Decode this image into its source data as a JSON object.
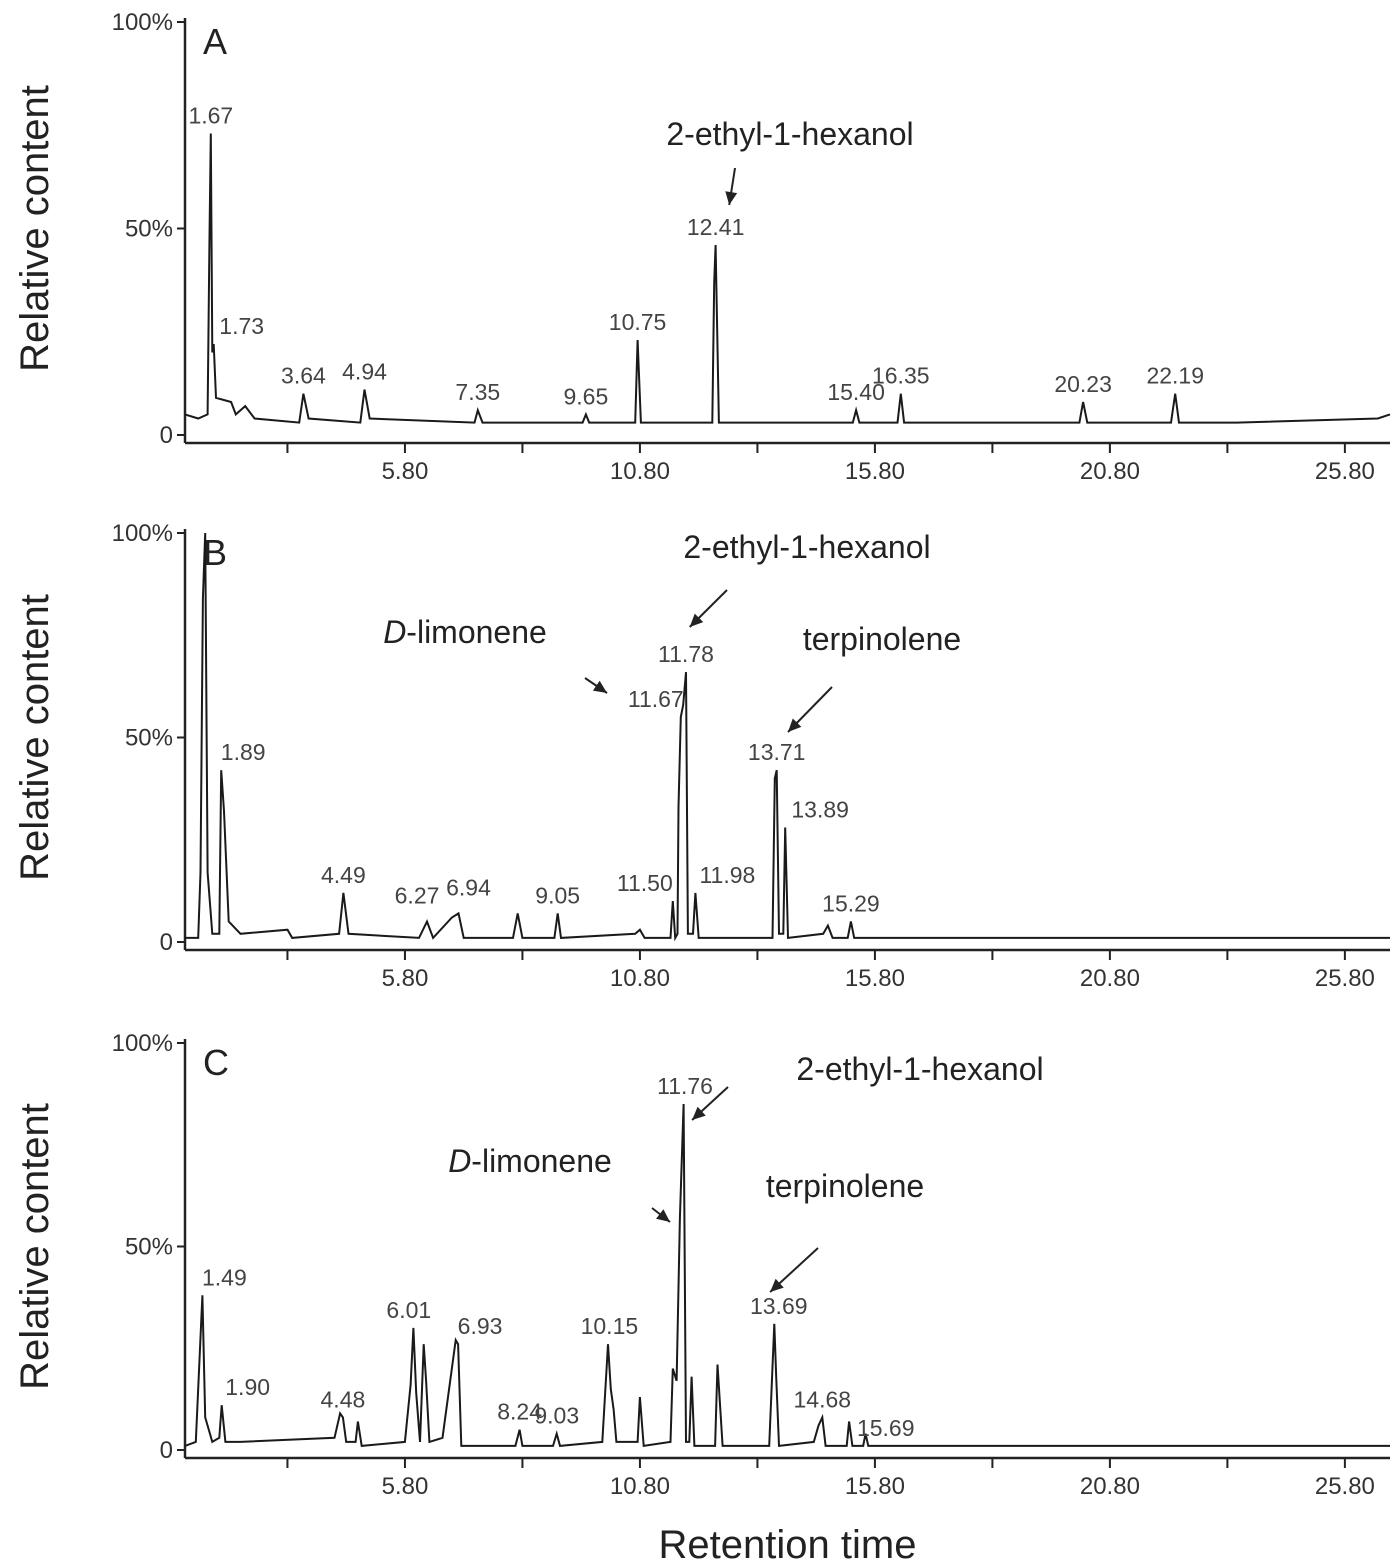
{
  "chart_data": [
    {
      "type": "line",
      "panel_label": "A",
      "ylabel": "Relative content",
      "color": "#1a1a1a",
      "xlim": [
        1.12,
        26.76
      ],
      "ylim": [
        0,
        100
      ],
      "xticks": [
        {
          "value": 5.8,
          "label": "5.80"
        },
        {
          "value": 10.8,
          "label": "10.80"
        },
        {
          "value": 15.8,
          "label": "15.80"
        },
        {
          "value": 20.8,
          "label": "20.80"
        },
        {
          "value": 25.8,
          "label": "25.80"
        }
      ],
      "xminorticks": [
        3.3,
        8.3,
        13.3,
        18.3,
        23.3
      ],
      "yticks": [
        {
          "value": 0,
          "label": "0"
        },
        {
          "value": 50,
          "label": "50%"
        },
        {
          "value": 100,
          "label": "100%"
        }
      ],
      "x": [
        1.12,
        1.4,
        1.6,
        1.64,
        1.67,
        1.7,
        1.73,
        1.78,
        2.1,
        2.2,
        2.4,
        2.6,
        3.55,
        3.64,
        3.75,
        4.85,
        4.94,
        5.05,
        7.28,
        7.35,
        7.45,
        9.58,
        9.65,
        9.72,
        10.7,
        10.75,
        10.82,
        12.34,
        12.38,
        12.41,
        12.48,
        15.33,
        15.4,
        15.47,
        16.28,
        16.35,
        16.42,
        20.15,
        20.23,
        20.32,
        22.1,
        22.19,
        22.27,
        23.5,
        26.5,
        26.76
      ],
      "values": [
        5,
        4,
        5,
        46,
        73,
        20,
        22,
        9,
        8,
        5,
        7,
        4,
        3,
        10,
        4,
        3,
        11,
        4,
        3,
        6,
        3,
        3,
        5,
        3,
        3,
        23,
        3,
        3,
        37,
        46,
        3,
        3,
        6,
        3,
        3,
        10,
        3,
        3,
        8,
        3,
        3,
        10,
        3,
        3,
        4,
        5
      ],
      "peaks": [
        {
          "value": 1.67,
          "label": "1.67"
        },
        {
          "value": 1.73,
          "label": "1.73"
        },
        {
          "value": 3.64,
          "label": "3.64"
        },
        {
          "value": 4.94,
          "label": "4.94"
        },
        {
          "value": 7.35,
          "label": "7.35"
        },
        {
          "value": 9.65,
          "label": "9.65"
        },
        {
          "value": 10.75,
          "label": "10.75"
        },
        {
          "value": 12.41,
          "label": "12.41"
        },
        {
          "value": 15.4,
          "label": "15.40"
        },
        {
          "value": 16.35,
          "label": "16.35"
        },
        {
          "value": 20.23,
          "label": "20.23"
        },
        {
          "value": 22.19,
          "label": "22.19"
        }
      ],
      "annotations": [
        {
          "text": "2-ethyl-1-hexanol",
          "x": 12.7
        }
      ]
    },
    {
      "type": "line",
      "panel_label": "B",
      "ylabel": "Relative content",
      "color": "#1a1a1a",
      "xlim": [
        1.12,
        26.76
      ],
      "ylim": [
        0,
        100
      ],
      "xticks": [
        {
          "value": 5.8,
          "label": "5.80"
        },
        {
          "value": 10.8,
          "label": "10.80"
        },
        {
          "value": 15.8,
          "label": "15.80"
        },
        {
          "value": 20.8,
          "label": "20.80"
        },
        {
          "value": 25.8,
          "label": "25.80"
        }
      ],
      "xminorticks": [
        3.3,
        8.3,
        13.3,
        18.3,
        23.3
      ],
      "yticks": [
        {
          "value": 0,
          "label": "0"
        },
        {
          "value": 50,
          "label": "50%"
        },
        {
          "value": 100,
          "label": "100%"
        }
      ],
      "x": [
        1.12,
        1.4,
        1.45,
        1.5,
        1.55,
        1.6,
        1.7,
        1.85,
        1.89,
        1.95,
        2.05,
        2.3,
        3.3,
        3.4,
        4.4,
        4.49,
        4.6,
        6.1,
        6.27,
        6.4,
        6.8,
        6.94,
        7.05,
        8.1,
        8.2,
        8.3,
        8.98,
        9.05,
        9.12,
        10.7,
        10.8,
        10.9,
        11.45,
        11.5,
        11.55,
        11.6,
        11.62,
        11.67,
        11.72,
        11.78,
        11.82,
        11.93,
        11.98,
        12.05,
        13.62,
        13.67,
        13.71,
        13.76,
        13.85,
        13.89,
        13.95,
        14.7,
        14.8,
        14.9,
        15.22,
        15.29,
        15.36,
        16.0,
        26.76
      ],
      "values": [
        1,
        1,
        17,
        84,
        100,
        17,
        2,
        2,
        42,
        32,
        5,
        2,
        3,
        1,
        2,
        12,
        2,
        1,
        5,
        1,
        6,
        7,
        1,
        1,
        7,
        1,
        1,
        7,
        1,
        2,
        3,
        1,
        1,
        10,
        1,
        2,
        33,
        55,
        58,
        66,
        2,
        2,
        12,
        1,
        1,
        40,
        42,
        2,
        2,
        28,
        1,
        2,
        4,
        1,
        1,
        5,
        1,
        1,
        1
      ],
      "peaks": [
        {
          "value": 1.89,
          "label": "1.89"
        },
        {
          "value": 4.49,
          "label": "4.49"
        },
        {
          "value": 6.27,
          "label": "6.27"
        },
        {
          "value": 6.94,
          "label": "6.94"
        },
        {
          "value": 9.05,
          "label": "9.05"
        },
        {
          "value": 11.5,
          "label": "11.50"
        },
        {
          "value": 11.67,
          "label": "11.67"
        },
        {
          "value": 11.78,
          "label": "11.78"
        },
        {
          "value": 11.98,
          "label": "11.98"
        },
        {
          "value": 13.71,
          "label": "13.71"
        },
        {
          "value": 13.89,
          "label": "13.89"
        },
        {
          "value": 15.29,
          "label": "15.29"
        }
      ],
      "annotations": [
        {
          "text": "2-ethyl-1-hexanol",
          "x": 11.86
        },
        {
          "text": "D-limonene",
          "x": 10.1
        },
        {
          "text": "terpinolene",
          "x": 13.95
        }
      ]
    },
    {
      "type": "line",
      "panel_label": "C",
      "ylabel": "Relative content",
      "xlabel": "Retention time",
      "color": "#1a1a1a",
      "xlim": [
        1.12,
        26.76
      ],
      "ylim": [
        0,
        100
      ],
      "xticks": [
        {
          "value": 5.8,
          "label": "5.80"
        },
        {
          "value": 10.8,
          "label": "10.80"
        },
        {
          "value": 15.8,
          "label": "15.80"
        },
        {
          "value": 20.8,
          "label": "20.80"
        },
        {
          "value": 25.8,
          "label": "25.80"
        }
      ],
      "xminorticks": [
        3.3,
        8.3,
        13.3,
        18.3,
        23.3
      ],
      "yticks": [
        {
          "value": 0,
          "label": "0"
        },
        {
          "value": 50,
          "label": "50%"
        },
        {
          "value": 100,
          "label": "100%"
        }
      ],
      "x": [
        1.12,
        1.35,
        1.42,
        1.49,
        1.55,
        1.7,
        1.85,
        1.9,
        1.98,
        2.3,
        4.3,
        4.42,
        4.48,
        4.55,
        4.75,
        4.8,
        4.88,
        5.8,
        5.92,
        5.98,
        6.04,
        6.12,
        6.2,
        6.25,
        6.32,
        6.6,
        6.88,
        6.93,
        7.0,
        8.15,
        8.24,
        8.3,
        8.95,
        9.03,
        9.1,
        10.0,
        10.12,
        10.18,
        10.24,
        10.3,
        10.75,
        10.8,
        10.88,
        11.45,
        11.5,
        11.58,
        11.65,
        11.73,
        11.78,
        11.85,
        11.9,
        11.96,
        12.4,
        12.45,
        12.5,
        12.56,
        13.55,
        13.66,
        13.7,
        13.76,
        14.5,
        14.6,
        14.68,
        14.75,
        15.2,
        15.25,
        15.32,
        15.55,
        15.6,
        15.66,
        16.0,
        26.76
      ],
      "values": [
        1,
        2,
        20,
        38,
        8,
        2,
        3,
        11,
        2,
        2,
        3,
        9,
        8,
        2,
        2,
        7,
        1,
        2,
        16,
        30,
        14,
        2,
        26,
        17,
        2,
        3,
        27,
        26,
        1,
        1,
        5,
        1,
        1,
        4,
        1,
        2,
        26,
        15,
        10,
        2,
        2,
        13,
        1,
        2,
        20,
        17,
        57,
        85,
        2,
        2,
        18,
        1,
        1,
        21,
        12,
        1,
        1,
        31,
        18,
        1,
        2,
        6,
        8,
        1,
        1,
        7,
        1,
        1,
        4,
        1,
        1,
        1
      ],
      "peaks": [
        {
          "value": 1.49,
          "label": "1.49"
        },
        {
          "value": 1.9,
          "label": "1.90"
        },
        {
          "value": 4.48,
          "label": "4.48"
        },
        {
          "value": 6.01,
          "label": "6.01"
        },
        {
          "value": 6.93,
          "label": "6.93"
        },
        {
          "value": 8.24,
          "label": "8.24"
        },
        {
          "value": 9.03,
          "label": "9.03"
        },
        {
          "value": 10.15,
          "label": "10.15"
        },
        {
          "value": 11.76,
          "label": "11.76"
        },
        {
          "value": 13.69,
          "label": "13.69"
        },
        {
          "value": 14.68,
          "label": "14.68"
        },
        {
          "value": 15.69,
          "label": "15.69"
        }
      ],
      "annotations": [
        {
          "text": "2-ethyl-1-hexanol",
          "x": 11.91
        },
        {
          "text": "D-limonene",
          "x": 11.44
        },
        {
          "text": "terpinolene",
          "x": 13.57
        }
      ]
    }
  ]
}
